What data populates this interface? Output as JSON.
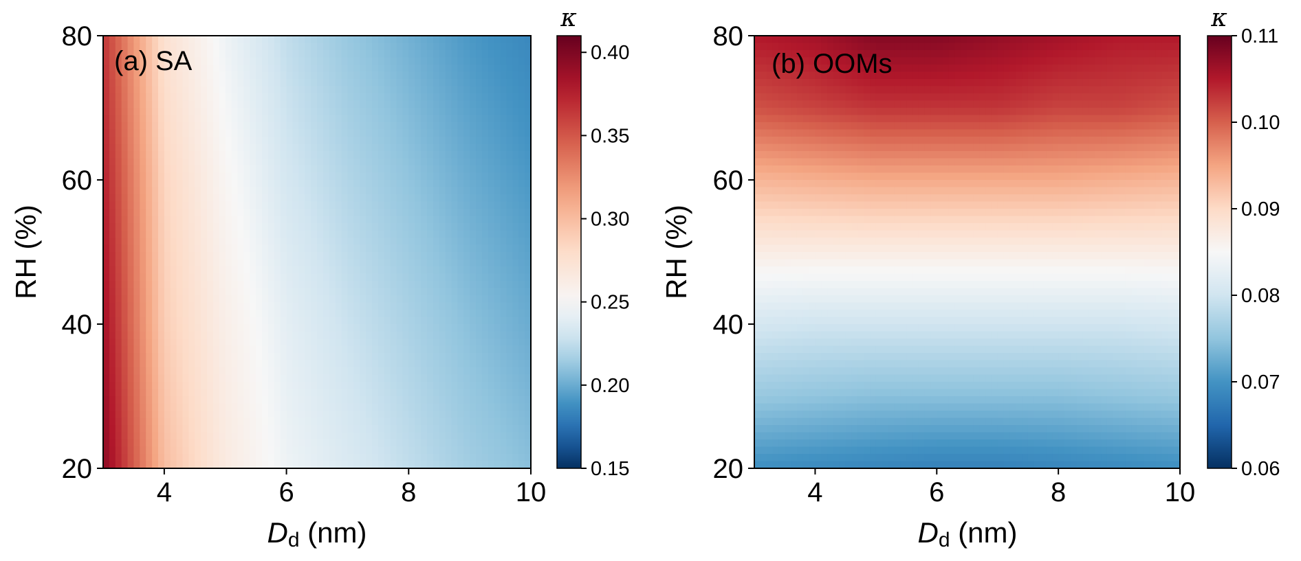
{
  "chart_data": [
    {
      "type": "heatmap",
      "panel_label": "(a) SA",
      "xlabel": {
        "main": "D",
        "sub": "d",
        "unit": " (nm)"
      },
      "ylabel": "RH (%)",
      "xlim": [
        3,
        10
      ],
      "ylim": [
        20,
        80
      ],
      "x_ticks": [
        4,
        6,
        8,
        10
      ],
      "y_ticks": [
        20,
        40,
        60,
        80
      ],
      "colorbar": {
        "title": "κ",
        "range": [
          0.15,
          0.41
        ],
        "ticks": [
          "0.15",
          "0.20",
          "0.25",
          "0.30",
          "0.35",
          "0.40"
        ],
        "colormap": "RdBu_r",
        "center": 0.25
      },
      "kappa_grid": {
        "x": [
          3,
          4,
          5,
          6,
          7,
          8,
          9,
          10
        ],
        "y": [
          20,
          40,
          60,
          80
        ],
        "z": [
          [
            0.395,
            0.3,
            0.265,
            0.245,
            0.235,
            0.225,
            0.215,
            0.208
          ],
          [
            0.385,
            0.29,
            0.26,
            0.24,
            0.228,
            0.218,
            0.208,
            0.2
          ],
          [
            0.375,
            0.285,
            0.253,
            0.232,
            0.22,
            0.21,
            0.2,
            0.192
          ],
          [
            0.365,
            0.275,
            0.245,
            0.225,
            0.212,
            0.202,
            0.192,
            0.185
          ]
        ]
      }
    },
    {
      "type": "heatmap",
      "panel_label": "(b) OOMs",
      "xlabel": {
        "main": "D",
        "sub": "d",
        "unit": " (nm)"
      },
      "ylabel": "RH (%)",
      "xlim": [
        3,
        10
      ],
      "ylim": [
        20,
        80
      ],
      "x_ticks": [
        4,
        6,
        8,
        10
      ],
      "y_ticks": [
        20,
        40,
        60,
        80
      ],
      "colorbar": {
        "title": "κ",
        "range": [
          0.06,
          0.11
        ],
        "ticks": [
          "0.06",
          "0.07",
          "0.08",
          "0.09",
          "0.10",
          "0.11"
        ],
        "colormap": "RdBu_r",
        "center": 0.085
      },
      "kappa_grid": {
        "x": [
          3,
          4,
          5,
          6,
          7,
          8,
          9,
          10
        ],
        "y": [
          20,
          30,
          40,
          50,
          60,
          70,
          80
        ],
        "z": [
          [
            0.0695,
            0.069,
            0.0685,
            0.068,
            0.068,
            0.0685,
            0.069,
            0.0695
          ],
          [
            0.0755,
            0.075,
            0.0745,
            0.0745,
            0.0745,
            0.0745,
            0.075,
            0.0755
          ],
          [
            0.0805,
            0.08,
            0.08,
            0.08,
            0.08,
            0.08,
            0.08,
            0.0805
          ],
          [
            0.087,
            0.087,
            0.087,
            0.087,
            0.087,
            0.087,
            0.087,
            0.087
          ],
          [
            0.0935,
            0.094,
            0.0945,
            0.0945,
            0.0945,
            0.0945,
            0.094,
            0.0935
          ],
          [
            0.101,
            0.102,
            0.103,
            0.103,
            0.103,
            0.102,
            0.102,
            0.101
          ],
          [
            0.105,
            0.106,
            0.108,
            0.108,
            0.107,
            0.106,
            0.105,
            0.105
          ]
        ]
      }
    }
  ]
}
